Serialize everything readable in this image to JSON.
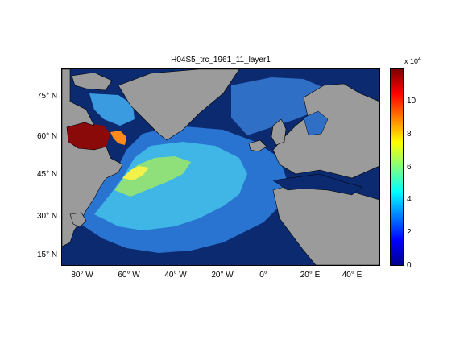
{
  "title": "H04S5_trc_1961_11_layer1",
  "map": {
    "y_labels": [
      "75° N",
      "60° N",
      "45° N",
      "30° N",
      "15° N"
    ],
    "x_labels": [
      "80° W",
      "60° W",
      "40° W",
      "20° W",
      "0°",
      "20° E",
      "40° E"
    ],
    "land_color": "#9b9b9b",
    "deep_ocean_color": "#0b2a6f"
  },
  "colorbar": {
    "multiplier_base": "x 10",
    "multiplier_exp": "4",
    "ticks": [
      "0",
      "2",
      "4",
      "6",
      "8",
      "10"
    ],
    "min": 0,
    "max": 12,
    "colormap": "jet"
  }
}
